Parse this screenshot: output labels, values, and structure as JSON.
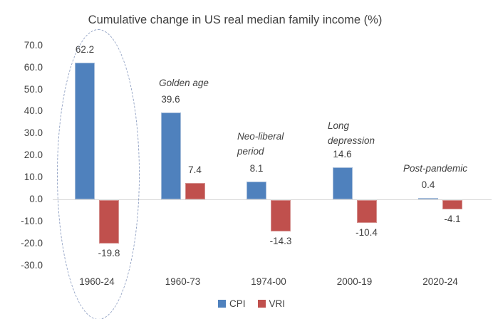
{
  "chart_data": {
    "type": "bar",
    "title": "Cumulative change in US real median family income (%)",
    "categories": [
      "1960-24",
      "1960-73",
      "1974-00",
      "2000-19",
      "2020-24"
    ],
    "series": [
      {
        "name": "CPI",
        "color": "#4f81bd",
        "values": [
          62.2,
          39.6,
          8.1,
          14.6,
          0.4
        ]
      },
      {
        "name": "VRI",
        "color": "#c0504d",
        "values": [
          -19.8,
          7.4,
          -14.3,
          -10.4,
          -4.1
        ]
      }
    ],
    "data_labels": [
      "62.2",
      "39.6",
      "8.1",
      "14.6",
      "0.4",
      "-19.8",
      "7.4",
      "-14.3",
      "-10.4",
      "-4.1"
    ],
    "annotations": [
      {
        "group_index": 1,
        "text": "Golden age"
      },
      {
        "group_index": 2,
        "text": "Neo-liberal\nperiod"
      },
      {
        "group_index": 3,
        "text": "Long\ndepression"
      },
      {
        "group_index": 4,
        "text": "Post-pandemic"
      }
    ],
    "y_axis": {
      "ticks": [
        "70.0",
        "60.0",
        "50.0",
        "40.0",
        "30.0",
        "20.0",
        "10.0",
        "0.0",
        "-10.0",
        "-20.0",
        "-30.0"
      ],
      "ylim": [
        -30,
        70
      ]
    },
    "xlabel": "",
    "ylabel": "",
    "grid": false,
    "legend_position": "bottom",
    "legend": [
      "CPI",
      "VRI"
    ],
    "highlight": {
      "type": "dashed-ellipse",
      "category": "1960-24",
      "color": "#92a2c4"
    },
    "axis_line_color": "#d9d9d9"
  }
}
